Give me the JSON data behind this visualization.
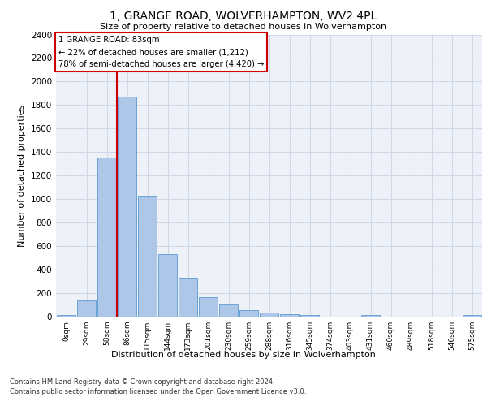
{
  "title1": "1, GRANGE ROAD, WOLVERHAMPTON, WV2 4PL",
  "title2": "Size of property relative to detached houses in Wolverhampton",
  "xlabel": "Distribution of detached houses by size in Wolverhampton",
  "ylabel": "Number of detached properties",
  "footer1": "Contains HM Land Registry data © Crown copyright and database right 2024.",
  "footer2": "Contains public sector information licensed under the Open Government Licence v3.0.",
  "annotation_title": "1 GRANGE ROAD: 83sqm",
  "annotation_line2": "← 22% of detached houses are smaller (1,212)",
  "annotation_line3": "78% of semi-detached houses are larger (4,420) →",
  "bar_labels": [
    "0sqm",
    "29sqm",
    "58sqm",
    "86sqm",
    "115sqm",
    "144sqm",
    "173sqm",
    "201sqm",
    "230sqm",
    "259sqm",
    "288sqm",
    "316sqm",
    "345sqm",
    "374sqm",
    "403sqm",
    "431sqm",
    "460sqm",
    "489sqm",
    "518sqm",
    "546sqm",
    "575sqm"
  ],
  "bar_values": [
    15,
    135,
    1355,
    1870,
    1030,
    535,
    330,
    163,
    105,
    55,
    35,
    22,
    15,
    0,
    0,
    15,
    0,
    0,
    0,
    0,
    12
  ],
  "bar_color": "#aec6e8",
  "bar_edge_color": "#5b9bd5",
  "grid_color": "#d0d8e8",
  "background_color": "#eef2f8",
  "vline_color": "#cc0000",
  "ylim": [
    0,
    2400
  ],
  "yticks": [
    0,
    200,
    400,
    600,
    800,
    1000,
    1200,
    1400,
    1600,
    1800,
    2000,
    2200,
    2400
  ],
  "annotation_box_color": "#ffffff",
  "annotation_box_edge": "#cc0000",
  "figsize": [
    6.0,
    5.0
  ],
  "dpi": 100
}
